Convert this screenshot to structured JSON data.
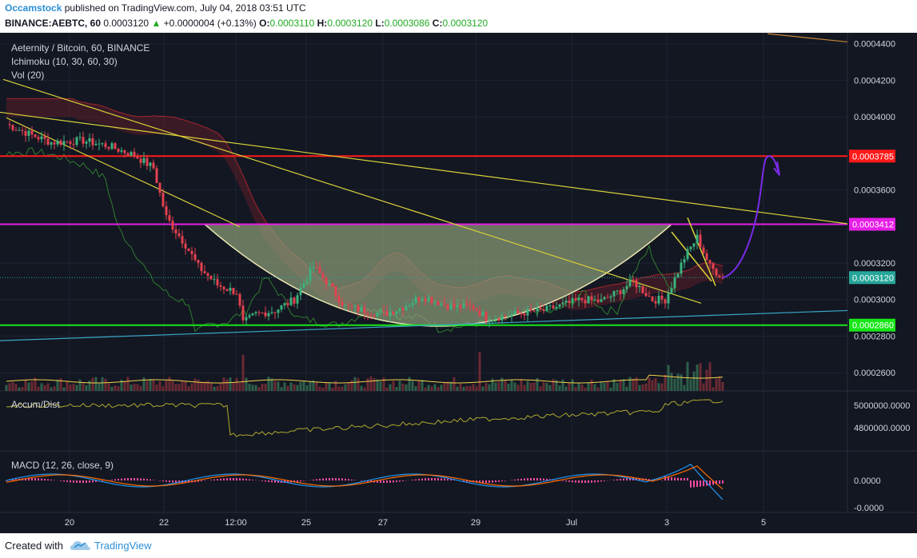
{
  "header": {
    "author": "Occamstock",
    "published": "published on TradingView.com, July 04, 2018 03:51 UTC",
    "symbol": "BINANCE:AEBTC, 60",
    "last": "0.0003120",
    "change_arrow": "▲",
    "change": "+0.0000004 (+0.13%)",
    "o_label": "O:",
    "o_value": "0.0003110",
    "h_label": "H:",
    "h_value": "0.0003120",
    "l_label": "L:",
    "l_value": "0.0003086",
    "c_label": "C:",
    "c_value": "0.0003120"
  },
  "legend": {
    "title": "Aeternity / Bitcoin, 60, BINANCE",
    "ichimoku": "Ichimoku (10, 30, 60, 30)",
    "vol": "Vol (20)",
    "accum": "Accum/Dist",
    "macd": "MACD (12, 26, close, 9)"
  },
  "footer": {
    "created_with": "Created with",
    "brand": "TradingView"
  },
  "colors": {
    "background": "#131722",
    "up": "#3bb37d",
    "down": "#e5414f",
    "red_line": "#ff1a1a",
    "magenta_line": "#e61ee6",
    "green_line": "#19e619",
    "trend_yellow": "#d8d13a",
    "cup_fill": "#8ea07a",
    "blue_trend": "#3aa8c8",
    "arrow_purple": "#7b2be8"
  },
  "chart_data": [
    {
      "type": "candlestick",
      "title": "Aeternity / Bitcoin, 60, BINANCE",
      "ylim": [
        0.00025,
        0.000446
      ],
      "y_ticks": [
        "0.0004400",
        "0.0004200",
        "0.0004000",
        "0.0003600",
        "0.0003200",
        "0.0003000",
        "0.0002800",
        "0.0002600"
      ],
      "x_ticks": [
        "20",
        "22",
        "12:00",
        "25",
        "27",
        "29",
        "Jul",
        "3",
        "5"
      ],
      "price_tags": [
        {
          "label": "0.0003785",
          "value": 0.0003785,
          "color": "#ff1a1a"
        },
        {
          "label": "0.0003412",
          "value": 0.0003412,
          "color": "#e61ee6"
        },
        {
          "label": "0.0003120",
          "value": 0.000312,
          "color": "#26a69a"
        },
        {
          "label": "0.0002860",
          "value": 0.000286,
          "color": "#19e619"
        }
      ],
      "price_path": [
        [
          0,
          0.000396
        ],
        [
          8,
          0.00039
        ],
        [
          14,
          0.000386
        ],
        [
          24,
          0.000387
        ],
        [
          32,
          0.000384
        ],
        [
          40,
          0.000379
        ],
        [
          46,
          0.000372
        ],
        [
          48,
          0.000358
        ],
        [
          50,
          0.000345
        ],
        [
          52,
          0.00034
        ],
        [
          56,
          0.00033
        ],
        [
          60,
          0.000318
        ],
        [
          66,
          0.000308
        ],
        [
          72,
          0.000304
        ],
        [
          74,
          0.000287
        ],
        [
          78,
          0.000292
        ],
        [
          84,
          0.000294
        ],
        [
          90,
          0.0003
        ],
        [
          96,
          0.000318
        ],
        [
          100,
          0.00031
        ],
        [
          106,
          0.000296
        ],
        [
          112,
          0.000294
        ],
        [
          118,
          0.000292
        ],
        [
          124,
          0.000296
        ],
        [
          130,
          0.000302
        ],
        [
          136,
          0.000298
        ],
        [
          140,
          0.000296
        ],
        [
          146,
          0.000296
        ],
        [
          150,
          0.00029
        ],
        [
          156,
          0.000291
        ],
        [
          162,
          0.000293
        ],
        [
          168,
          0.000294
        ],
        [
          174,
          0.000297
        ],
        [
          180,
          0.0003
        ],
        [
          186,
          0.000299
        ],
        [
          192,
          0.000305
        ],
        [
          196,
          0.00031
        ],
        [
          202,
          0.0003
        ],
        [
          206,
          0.0003
        ],
        [
          212,
          0.000323
        ],
        [
          216,
          0.000334
        ],
        [
          220,
          0.000318
        ],
        [
          224,
          0.000312
        ]
      ],
      "projection_target": 0.0003785
    },
    {
      "type": "line",
      "title": "Accum/Dist",
      "y_ticks": [
        "5000000.0000",
        "4800000.0000"
      ]
    },
    {
      "type": "line",
      "title": "MACD (12, 26, close, 9)",
      "y_ticks": [
        "0.0000",
        "-0.0000"
      ]
    }
  ]
}
